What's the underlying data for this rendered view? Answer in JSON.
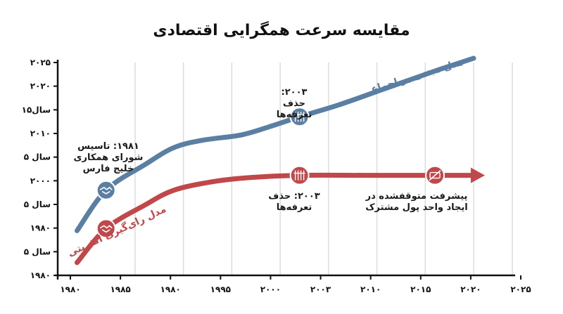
{
  "chart_data": {
    "type": "line",
    "title": "مقایسه سرعت همگرایی اقتصادی",
    "x_tick_labels": [
      "۱۹۸۰",
      "۱۹۸۵",
      "۱۹۸۰",
      "۱۹۹۵",
      "۲۰۰۰",
      "۲۰۰۳",
      "۲۰۱۰",
      "۲۰۱۵",
      "۲۰۲۰",
      "۲۰۲۵"
    ],
    "y_tick_labels": [
      "۲۰۲۵",
      "۲۰۲۰",
      "۱۵سال",
      "۲۰۱۰",
      "۵ سال",
      "۲۰۰۰",
      "۵ سال",
      "۱۹۸۰",
      "۵ سال",
      "۱۹۸۰"
    ],
    "grid": true,
    "series": [
      {
        "name": "مدل مبتنی بر اجماع",
        "color": "#5a7fa3",
        "x": [
          1980,
          1983,
          1987,
          1990,
          1993,
          1997,
          2000,
          2003,
          2007,
          2012,
          2017,
          2021
        ],
        "y": [
          0.21,
          0.4,
          0.52,
          0.6,
          0.635,
          0.66,
          0.7,
          0.745,
          0.8,
          0.88,
          0.96,
          1.02
        ]
      },
      {
        "name": "مدل رای‌گیری اکثریتی",
        "color": "#c0474a",
        "x": [
          1980,
          1983,
          1987,
          1990,
          1994,
          1998,
          2003,
          2010,
          2017,
          2021
        ],
        "y": [
          0.06,
          0.22,
          0.33,
          0.4,
          0.44,
          0.46,
          0.47,
          0.47,
          0.47,
          0.47
        ]
      }
    ],
    "markers": [
      {
        "series": 0,
        "x": 1983,
        "icon": "handshake-icon"
      },
      {
        "series": 0,
        "x": 2003,
        "icon": "gate-icon"
      },
      {
        "series": 1,
        "x": 1983,
        "icon": "handshake-icon"
      },
      {
        "series": 1,
        "x": 2003,
        "icon": "gate-icon"
      },
      {
        "series": 1,
        "x": 2017,
        "icon": "no-currency-icon"
      }
    ],
    "annotations": [
      {
        "lines": [
          "۱۹۸۱: تاسیس",
          "شورای همکاری",
          "خلیج فارس"
        ]
      },
      {
        "lines": [
          "۲۰۰۳:",
          "حذف",
          "تعرفه‌ها"
        ]
      },
      {
        "lines": [
          "۲۰۰۳: حذف",
          "تعرفه‌ها"
        ]
      },
      {
        "lines": [
          "پیشرفت متوقفشده در",
          "ایجاد واحد پول مشترک"
        ]
      }
    ],
    "arrow_end": true
  }
}
